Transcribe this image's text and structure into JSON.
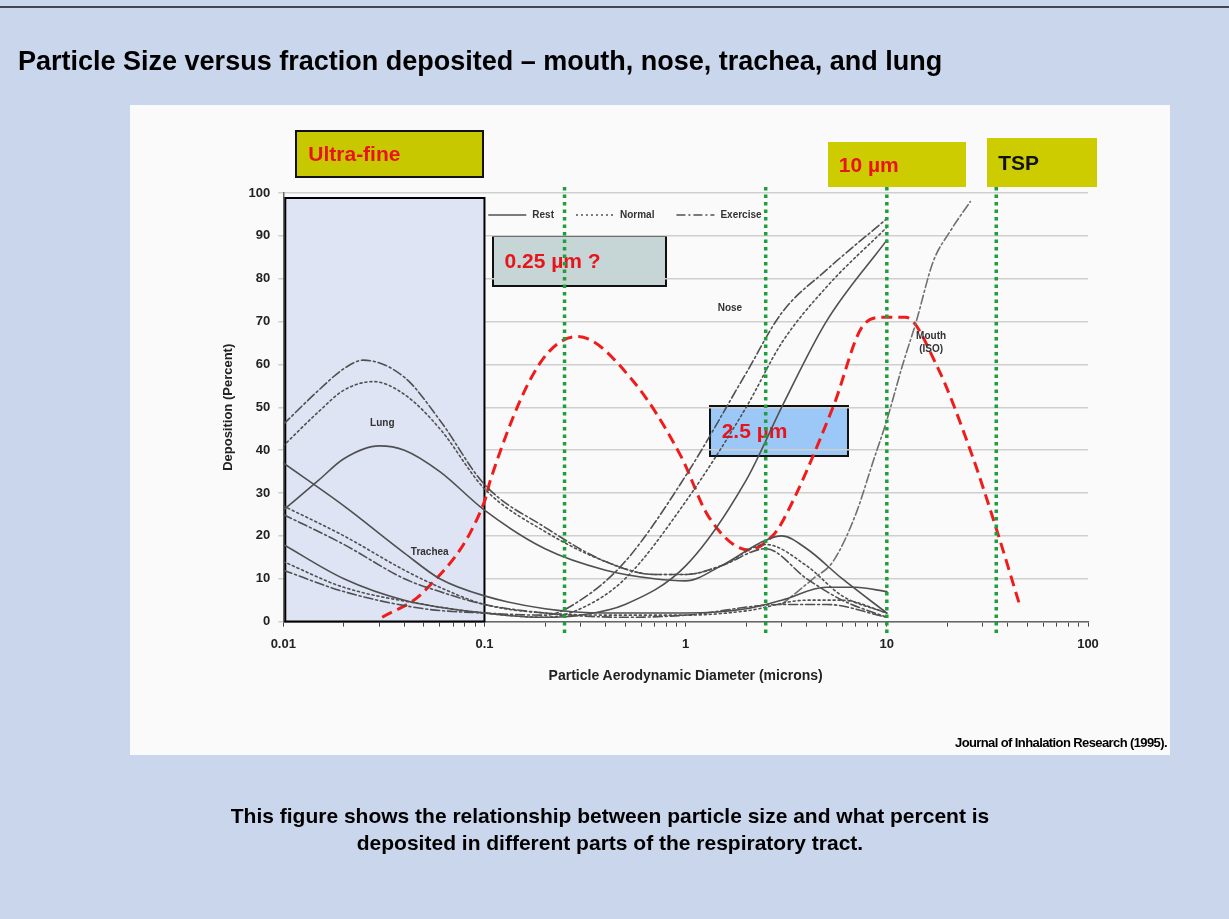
{
  "chart_data": {
    "type": "line",
    "title": "Particle Size versus fraction deposited – mouth, nose, trachea, and lung",
    "xlabel": "Particle Aerodynamic Diameter (microns)",
    "ylabel": "Deposition (Percent)",
    "log": "x",
    "xlim": [
      0.01,
      100
    ],
    "ylim": [
      0,
      100
    ],
    "xticks": [
      0.01,
      {
        "value": 0.02,
        "label": null
      },
      {
        "value": 0.03,
        "label": null
      },
      {
        "value": 0.04,
        "label": null
      },
      {
        "value": 0.05,
        "label": null
      },
      {
        "value": 0.06,
        "label": null
      },
      {
        "value": 0.07,
        "label": null
      },
      {
        "value": 0.08,
        "label": null
      },
      {
        "value": 0.09,
        "label": null
      },
      0.1,
      {
        "value": 0.2,
        "label": null
      },
      {
        "value": 0.3,
        "label": null
      },
      {
        "value": 0.4,
        "label": null
      },
      {
        "value": 0.5,
        "label": null
      },
      {
        "value": 0.6,
        "label": null
      },
      {
        "value": 0.7,
        "label": null
      },
      {
        "value": 0.8,
        "label": null
      },
      {
        "value": 0.9,
        "label": null
      },
      1,
      {
        "value": 2,
        "label": null
      },
      {
        "value": 3,
        "label": null
      },
      {
        "value": 4,
        "label": null
      },
      {
        "value": 5,
        "label": null
      },
      {
        "value": 6,
        "label": null
      },
      {
        "value": 7,
        "label": null
      },
      {
        "value": 8,
        "label": null
      },
      {
        "value": 9,
        "label": null
      },
      10,
      {
        "value": 20,
        "label": null
      },
      {
        "value": 30,
        "label": null
      },
      {
        "value": 40,
        "label": null
      },
      {
        "value": 50,
        "label": null
      },
      {
        "value": 60,
        "label": null
      },
      {
        "value": 70,
        "label": null
      },
      {
        "value": 80,
        "label": null
      },
      {
        "value": 90,
        "label": null
      },
      100
    ],
    "yticks": [
      0,
      10,
      20,
      30,
      40,
      50,
      60,
      70,
      80,
      90,
      100
    ],
    "grid": "y",
    "legend": "top",
    "marker": "none",
    "series": [
      {
        "name": "Rest",
        "color": "#505050",
        "line_style": "solid",
        "x": [
          0.01,
          0.015,
          0.02,
          0.03,
          0.04,
          0.06,
          0.1,
          0.2,
          0.4,
          0.7,
          1,
          1.5,
          2.5,
          3,
          4,
          6,
          10
        ],
        "values": [
          26,
          33,
          38,
          41,
          40,
          35,
          26,
          17,
          12,
          10,
          9.5,
          13,
          19,
          20,
          17,
          10,
          2
        ]
      },
      {
        "name": "Normal",
        "color": "#505050",
        "line_style": "dotted",
        "x": [
          0.01,
          0.015,
          0.02,
          0.028,
          0.04,
          0.06,
          0.1,
          0.2,
          0.4,
          0.7,
          1,
          1.5,
          2.5,
          4,
          6,
          10
        ],
        "values": [
          41,
          49,
          54,
          56,
          53,
          45,
          31,
          21,
          14,
          11,
          11,
          13,
          18,
          13,
          6,
          2
        ]
      },
      {
        "name": "Exercise",
        "color": "#505050",
        "line_style": "dashdot",
        "x": [
          0.01,
          0.015,
          0.02,
          0.025,
          0.04,
          0.06,
          0.1,
          0.2,
          0.4,
          0.7,
          1,
          1.5,
          2.5,
          4,
          6,
          10
        ],
        "values": [
          46,
          54,
          59,
          61,
          57,
          47,
          32,
          22,
          14,
          11,
          11,
          13,
          17,
          10,
          5,
          1
        ]
      },
      {
        "color": "#505050",
        "line_style": "solid",
        "x": [
          0.01,
          0.02,
          0.04,
          0.06,
          0.1,
          0.2,
          0.4,
          1,
          2,
          3,
          5,
          7,
          10
        ],
        "values": [
          37,
          27,
          16,
          10,
          6,
          3,
          2,
          2,
          3,
          5,
          8,
          8,
          7
        ]
      },
      {
        "color": "#505050",
        "line_style": "dotted",
        "x": [
          0.01,
          0.02,
          0.04,
          0.06,
          0.1,
          0.2,
          0.5,
          1,
          2,
          4,
          6,
          10
        ],
        "values": [
          27,
          20,
          12,
          8,
          4,
          2,
          1.5,
          1.5,
          2.5,
          5,
          5,
          2
        ]
      },
      {
        "color": "#505050",
        "line_style": "dashdot",
        "x": [
          0.01,
          0.02,
          0.04,
          0.06,
          0.1,
          0.2,
          0.5,
          1,
          3,
          5,
          10
        ],
        "values": [
          25,
          18,
          10,
          7,
          4,
          2,
          1,
          1.5,
          4,
          4,
          1
        ]
      },
      {
        "color": "#505050",
        "line_style": "solid",
        "x": [
          0.01,
          0.02,
          0.04,
          0.1,
          0.2,
          0.3,
          0.5,
          1,
          2,
          3,
          5,
          10
        ],
        "values": [
          18,
          10,
          5,
          2,
          1,
          1.5,
          4,
          13,
          33,
          50,
          70,
          89
        ]
      },
      {
        "color": "#505050",
        "line_style": "dotted",
        "x": [
          0.01,
          0.02,
          0.05,
          0.1,
          0.2,
          0.3,
          0.5,
          1,
          2,
          3,
          5,
          10
        ],
        "values": [
          14,
          8,
          4,
          2,
          1,
          3,
          10,
          28,
          50,
          65,
          78,
          92
        ]
      },
      {
        "color": "#505050",
        "line_style": "dashdot",
        "x": [
          0.01,
          0.02,
          0.05,
          0.1,
          0.2,
          0.3,
          0.5,
          1,
          2,
          3,
          5,
          10
        ],
        "values": [
          12,
          7,
          3,
          2,
          1.5,
          5,
          14,
          34,
          58,
          72,
          82,
          94
        ]
      },
      {
        "color": "#707070",
        "line_style": "dashdot",
        "x": [
          3,
          4.3,
          5.4,
          7,
          8.5,
          10,
          12,
          14,
          17,
          20.6,
          26
        ],
        "values": [
          4,
          10,
          14,
          25,
          37,
          47,
          60,
          70,
          84,
          91,
          98
        ]
      },
      {
        "color": "#f01c1c",
        "line_style": "dashed",
        "x": [
          0.031,
          0.05,
          0.1,
          0.107,
          0.184,
          0.29,
          0.54,
          0.95,
          1.3,
          2.07,
          2.7,
          3,
          5.4,
          7.6,
          9.5,
          12.4,
          17.6,
          26,
          35,
          46
        ],
        "values": [
          1,
          7,
          28,
          33,
          59.5,
          66.5,
          56.5,
          38.5,
          24.5,
          16.7,
          20,
          23,
          50,
          69,
          71,
          71,
          60,
          40,
          21.7,
          3.5
        ]
      }
    ],
    "bands": [
      {
        "axis": "x",
        "from": 0.01,
        "to": 0.1,
        "label": "Ultra-fine",
        "color": "#dfe4f4"
      }
    ],
    "ref_lines": [
      {
        "axis": "x",
        "value": 0.25,
        "label": "0.25 µm ?",
        "color": "#1f9e3c",
        "line_style": "dotted"
      },
      {
        "axis": "x",
        "value": 2.5,
        "label": "2.5 µm",
        "color": "#1f9e3c",
        "line_style": "dotted"
      },
      {
        "axis": "x",
        "value": 10,
        "label": "10 µm",
        "color": "#1f9e3c",
        "line_style": "dotted"
      },
      {
        "axis": "x",
        "value": 35,
        "label": "TSP",
        "color": "#1f9e3c",
        "line_style": "dotted"
      }
    ],
    "annotations": [
      "Lung",
      "Trachea",
      "Nose",
      "Mouth (ISO)",
      "Journal of Inhalation Research (1995).",
      "This figure shows the relationship between particle size and what percent is deposited in different parts of the respiratory tract."
    ]
  }
}
